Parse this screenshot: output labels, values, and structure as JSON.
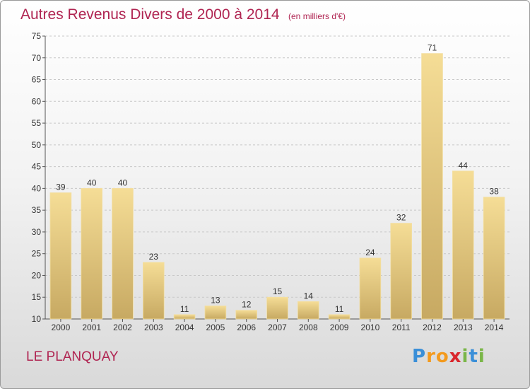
{
  "chart_data": {
    "type": "bar",
    "title": "Autres Revenus Divers de 2000 à 2014",
    "unit_note": "(en milliers d'€)",
    "categories": [
      "2000",
      "2001",
      "2002",
      "2003",
      "2004",
      "2005",
      "2006",
      "2007",
      "2008",
      "2009",
      "2010",
      "2011",
      "2012",
      "2013",
      "2014"
    ],
    "values": [
      39,
      40,
      40,
      23,
      11,
      13,
      12,
      15,
      14,
      11,
      24,
      32,
      71,
      44,
      38
    ],
    "ylim": [
      10,
      75
    ],
    "yticks": [
      10,
      15,
      20,
      25,
      30,
      35,
      40,
      45,
      50,
      55,
      60,
      65,
      70,
      75
    ],
    "grid": "horizontal dashed",
    "colors": {
      "bar_top": "#f5dd96",
      "bar_bottom": "#c7a962",
      "title": "#b02552"
    }
  },
  "commune": "LE PLANQUAY",
  "logo": {
    "letters": [
      "P",
      "r",
      "o",
      "x",
      "i",
      "t",
      "i"
    ],
    "colors": [
      "#3a8fd8",
      "#f39a1e",
      "#f39a1e",
      "#d9262c",
      "#7ab648",
      "#3a8fd8",
      "#7ab648"
    ]
  }
}
